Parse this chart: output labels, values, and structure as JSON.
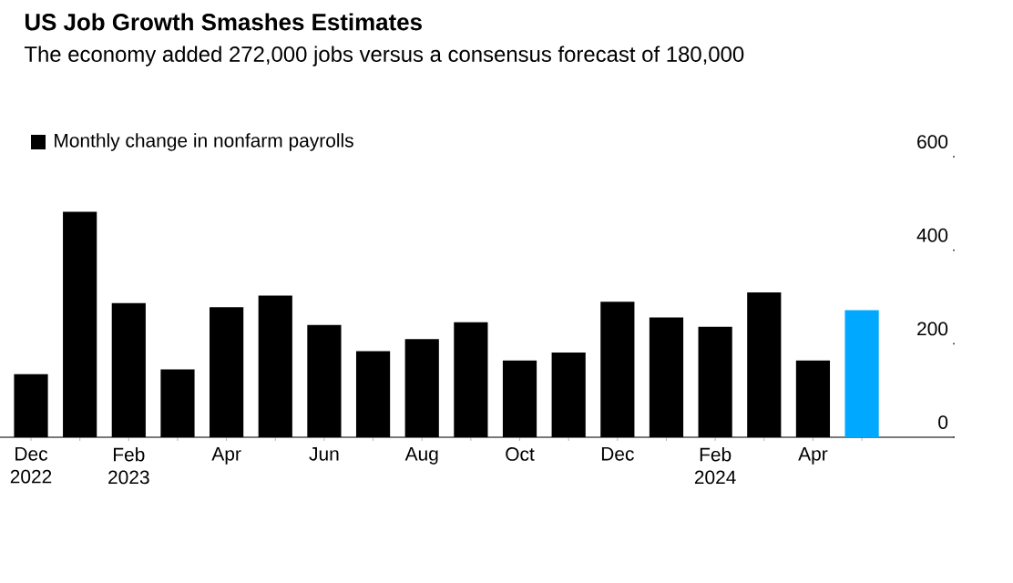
{
  "chart_data": {
    "type": "bar",
    "title": "US Job Growth Smashes Estimates",
    "subtitle": "The economy added 272,000 jobs versus a consensus forecast of 180,000",
    "categories": [
      "Dec 2022",
      null,
      "Feb 2023",
      null,
      "Apr",
      null,
      "Jun",
      null,
      "Aug",
      null,
      "Oct",
      null,
      "Dec",
      null,
      "Feb 2024",
      null,
      "Apr",
      null
    ],
    "series": [
      {
        "name": "Monthly change in nonfarm payrolls",
        "color": "#000000",
        "values": [
          135,
          482,
          287,
          145,
          278,
          303,
          240,
          184,
          210,
          246,
          164,
          181,
          290,
          256,
          236,
          310,
          164,
          272
        ],
        "colors": [
          "#000000",
          "#000000",
          "#000000",
          "#000000",
          "#000000",
          "#000000",
          "#000000",
          "#000000",
          "#000000",
          "#000000",
          "#000000",
          "#000000",
          "#000000",
          "#000000",
          "#000000",
          "#000000",
          "#000000",
          "#00a8ff"
        ]
      }
    ],
    "ylim": [
      0,
      600
    ],
    "yticks": [
      0,
      200,
      400,
      600
    ],
    "grid": false,
    "legend": "top left"
  }
}
